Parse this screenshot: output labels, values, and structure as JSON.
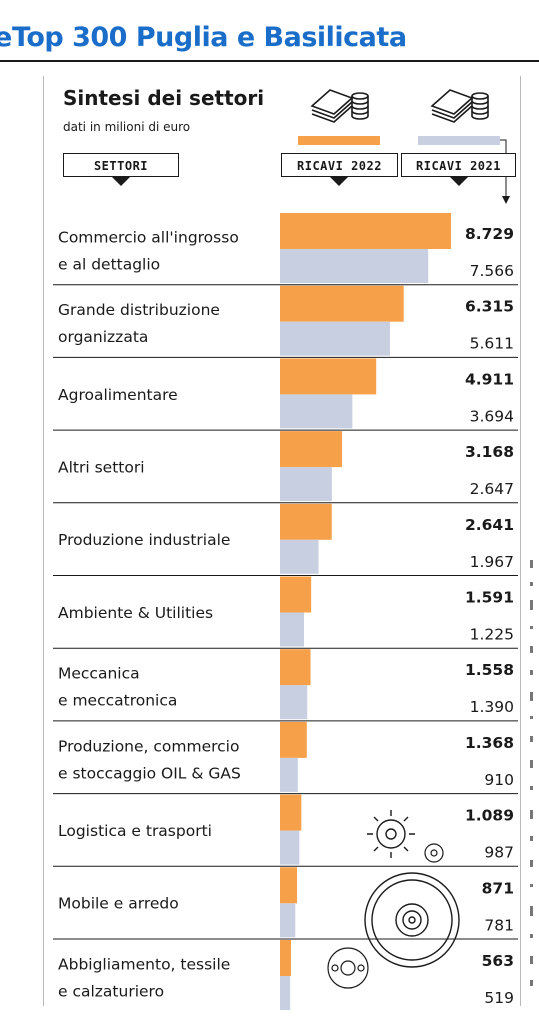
{
  "header": {
    "glyph": "e",
    "title": "Top 300 Puglia e Basilicata"
  },
  "colors": {
    "accent": "#1a6ec9",
    "bar_2022": "#f7a04a",
    "bar_2021": "#c7cfe1",
    "divider": "#1a1a1a"
  },
  "icons": [
    "money-stack-icon",
    "gear-icon",
    "gear-wheel-icon"
  ],
  "chart_data": {
    "type": "bar",
    "orientation": "horizontal",
    "title": "Sintesi dei settori",
    "subtitle": "dati in milioni di euro",
    "category_header": "SETTORI",
    "categories": [
      [
        "Commercio all'ingrosso",
        "e al dettaglio"
      ],
      [
        "Grande distribuzione",
        "organizzata"
      ],
      [
        "Agroalimentare"
      ],
      [
        "Altri settori"
      ],
      [
        "Produzione industriale"
      ],
      [
        "Ambiente & Utilities"
      ],
      [
        "Meccanica",
        "e meccatronica"
      ],
      [
        "Produzione, commercio",
        "e stoccaggio OIL & GAS"
      ],
      [
        "Logistica e trasporti"
      ],
      [
        "Mobile e arredo"
      ],
      [
        "Abbigliamento, tessile",
        "e calzaturiero"
      ]
    ],
    "series": [
      {
        "name": "RICAVI 2022",
        "labels": [
          "8.729",
          "6.315",
          "4.911",
          "3.168",
          "2.641",
          "1.591",
          "1.558",
          "1.368",
          "1.089",
          "871",
          "563"
        ],
        "values": [
          8729,
          6315,
          4911,
          3168,
          2641,
          1591,
          1558,
          1368,
          1089,
          871,
          563
        ]
      },
      {
        "name": "RICAVI 2021",
        "labels": [
          "7.566",
          "5.611",
          "3.694",
          "2.647",
          "1.967",
          "1.225",
          "1.390",
          "910",
          "987",
          "781",
          "519"
        ],
        "values": [
          7566,
          5611,
          3694,
          2647,
          1967,
          1225,
          1390,
          910,
          987,
          781,
          519
        ]
      }
    ],
    "xlim": [
      0,
      8729
    ],
    "grid": false,
    "legend": "top"
  }
}
